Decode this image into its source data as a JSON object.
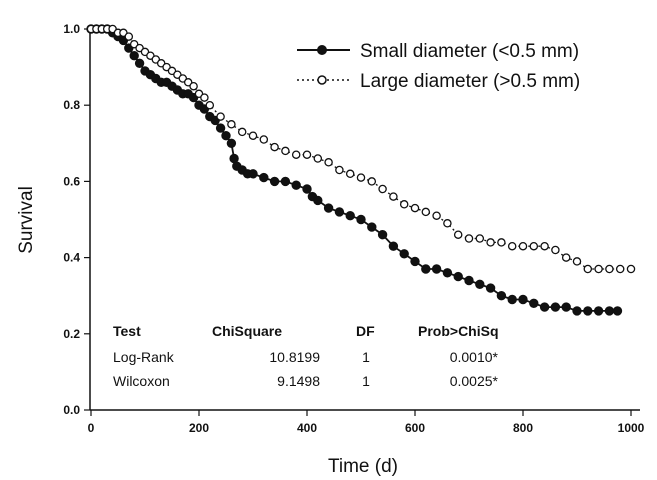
{
  "chart_data": {
    "type": "line",
    "xlabel": "Time (d)",
    "ylabel": "Survival",
    "xlim": [
      0,
      1000
    ],
    "ylim": [
      0.0,
      1.0
    ],
    "xticks": [
      "0",
      "200",
      "400",
      "600",
      "800",
      "1000"
    ],
    "yticks": [
      "0.0",
      "0.2",
      "0.4",
      "0.6",
      "0.8",
      "1.0"
    ],
    "grid": false,
    "legend_position": "top-right",
    "series": [
      {
        "name": "Small diameter (<0.5 mm)",
        "marker": "filled-circle",
        "line": "solid",
        "color": "#111111",
        "x": [
          0,
          10,
          20,
          30,
          40,
          50,
          60,
          70,
          80,
          90,
          100,
          110,
          120,
          130,
          140,
          150,
          160,
          170,
          180,
          190,
          200,
          210,
          220,
          230,
          240,
          250,
          260,
          265,
          270,
          280,
          290,
          300,
          320,
          340,
          360,
          380,
          400,
          410,
          420,
          440,
          460,
          480,
          500,
          520,
          540,
          560,
          580,
          600,
          620,
          640,
          660,
          680,
          700,
          720,
          740,
          760,
          780,
          800,
          820,
          840,
          860,
          880,
          900,
          920,
          940,
          960,
          975
        ],
        "y": [
          1.0,
          1.0,
          1.0,
          1.0,
          0.99,
          0.98,
          0.97,
          0.95,
          0.93,
          0.91,
          0.89,
          0.88,
          0.87,
          0.86,
          0.86,
          0.85,
          0.84,
          0.83,
          0.83,
          0.82,
          0.8,
          0.79,
          0.77,
          0.76,
          0.74,
          0.72,
          0.7,
          0.66,
          0.64,
          0.63,
          0.62,
          0.62,
          0.61,
          0.6,
          0.6,
          0.59,
          0.58,
          0.56,
          0.55,
          0.53,
          0.52,
          0.51,
          0.5,
          0.48,
          0.46,
          0.43,
          0.41,
          0.39,
          0.37,
          0.37,
          0.36,
          0.35,
          0.34,
          0.33,
          0.32,
          0.3,
          0.29,
          0.29,
          0.28,
          0.27,
          0.27,
          0.27,
          0.26,
          0.26,
          0.26,
          0.26,
          0.26
        ]
      },
      {
        "name": "Large diameter (>0.5 mm)",
        "marker": "open-circle",
        "line": "dotted",
        "color": "#111111",
        "x": [
          0,
          10,
          20,
          30,
          40,
          50,
          60,
          70,
          80,
          90,
          100,
          110,
          120,
          130,
          140,
          150,
          160,
          170,
          180,
          190,
          200,
          210,
          220,
          240,
          260,
          280,
          300,
          320,
          340,
          360,
          380,
          400,
          420,
          440,
          460,
          480,
          500,
          520,
          540,
          560,
          580,
          600,
          620,
          640,
          660,
          680,
          700,
          720,
          740,
          760,
          780,
          800,
          820,
          840,
          860,
          880,
          900,
          920,
          940,
          960,
          980,
          1000
        ],
        "y": [
          1.0,
          1.0,
          1.0,
          1.0,
          1.0,
          0.99,
          0.99,
          0.98,
          0.96,
          0.95,
          0.94,
          0.93,
          0.92,
          0.91,
          0.9,
          0.89,
          0.88,
          0.87,
          0.86,
          0.85,
          0.83,
          0.82,
          0.8,
          0.77,
          0.75,
          0.73,
          0.72,
          0.71,
          0.69,
          0.68,
          0.67,
          0.67,
          0.66,
          0.65,
          0.63,
          0.62,
          0.61,
          0.6,
          0.58,
          0.56,
          0.54,
          0.53,
          0.52,
          0.51,
          0.49,
          0.46,
          0.45,
          0.45,
          0.44,
          0.44,
          0.43,
          0.43,
          0.43,
          0.43,
          0.42,
          0.4,
          0.39,
          0.37,
          0.37,
          0.37,
          0.37,
          0.37
        ]
      }
    ],
    "annotation_table": {
      "headers": [
        "Test",
        "ChiSquare",
        "DF",
        "Prob>ChiSq"
      ],
      "rows": [
        [
          "Log-Rank",
          "10.8199",
          "1",
          "0.0010*"
        ],
        [
          "Wilcoxon",
          "9.1498",
          "1",
          "0.0025*"
        ]
      ]
    }
  }
}
